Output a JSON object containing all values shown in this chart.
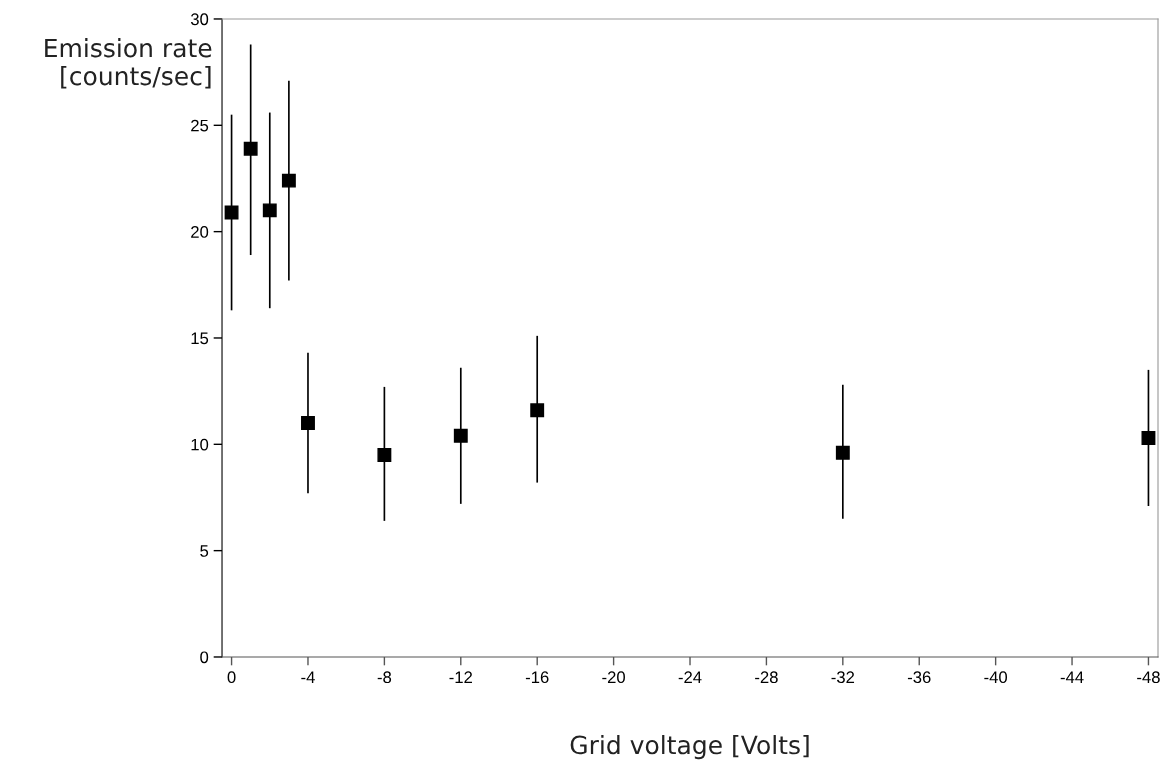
{
  "chart_data": {
    "type": "scatter",
    "xlabel": "Grid voltage [Volts]",
    "ylabel": "Emission rate\n[counts/sec]",
    "x": [
      0,
      -1,
      -2,
      -3,
      -4,
      -8,
      -12,
      -16,
      -32,
      -48
    ],
    "series": [
      {
        "color": "#000000",
        "values": [
          20.9,
          23.9,
          21.0,
          22.4,
          11.0,
          9.5,
          10.4,
          11.6,
          9.6,
          10.3
        ],
        "errors": [
          [
            16.3,
            25.5
          ],
          [
            18.9,
            28.8
          ],
          [
            16.4,
            25.6
          ],
          [
            17.7,
            27.1
          ],
          [
            7.7,
            14.3
          ],
          [
            6.4,
            12.7
          ],
          [
            7.2,
            13.6
          ],
          [
            8.2,
            15.1
          ],
          [
            6.5,
            12.8
          ],
          [
            7.1,
            13.5
          ]
        ]
      }
    ],
    "marker": "square",
    "xlim": [
      0.5,
      -48.5
    ],
    "ylim": [
      0,
      30
    ],
    "xticks": [
      0,
      -4,
      -8,
      -12,
      -16,
      -20,
      -24,
      -28,
      -32,
      -36,
      -40,
      -44,
      -48
    ],
    "yticks": [
      0,
      5,
      10,
      15,
      20,
      25,
      30
    ],
    "grid": false,
    "legend": false
  }
}
